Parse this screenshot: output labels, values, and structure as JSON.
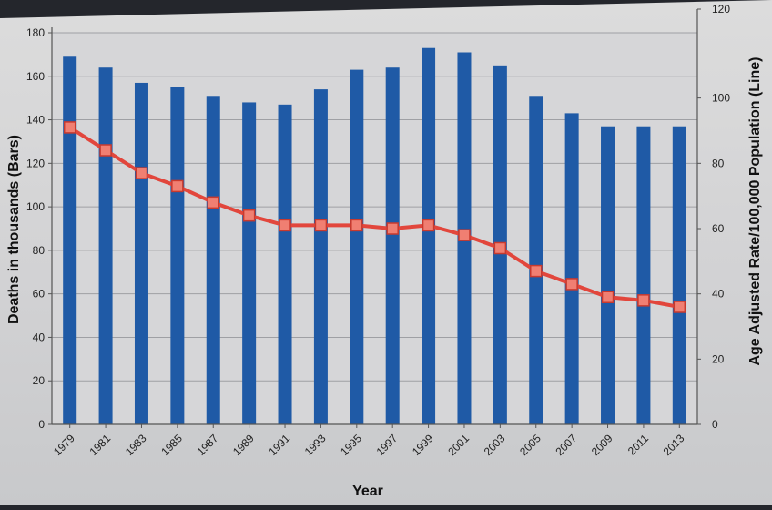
{
  "chart_data": {
    "type": "bar",
    "xlabel": "Year",
    "ylabel": "Deaths in thousands (Bars)",
    "y2label": "Age Adjusted Rate/100,000 Population (Line)",
    "categories": [
      "1979",
      "1981",
      "1983",
      "1985",
      "1987",
      "1989",
      "1991",
      "1993",
      "1995",
      "1997",
      "1999",
      "2001",
      "2003",
      "2005",
      "2007",
      "2009",
      "2011",
      "2013"
    ],
    "ylim": [
      0,
      180
    ],
    "yticks": [
      0,
      20,
      40,
      60,
      80,
      100,
      120,
      140,
      160,
      180
    ],
    "y2lim": [
      0,
      120
    ],
    "y2ticks": [
      0,
      20,
      40,
      60,
      80,
      100,
      120
    ],
    "grid": true,
    "series": [
      {
        "type": "bar",
        "axis": "left",
        "color": "#1f5aa6",
        "values": [
          169,
          164,
          157,
          155,
          151,
          148,
          147,
          154,
          163,
          164,
          173,
          171,
          165,
          151,
          143,
          137,
          137,
          137
        ]
      },
      {
        "type": "line",
        "axis": "right",
        "color": "#e2463c",
        "marker_color": "#f07f72",
        "values": [
          91,
          84,
          77,
          73,
          68,
          64,
          61,
          61,
          61,
          60,
          61,
          58,
          54,
          47,
          43,
          39,
          38,
          36
        ]
      }
    ]
  }
}
